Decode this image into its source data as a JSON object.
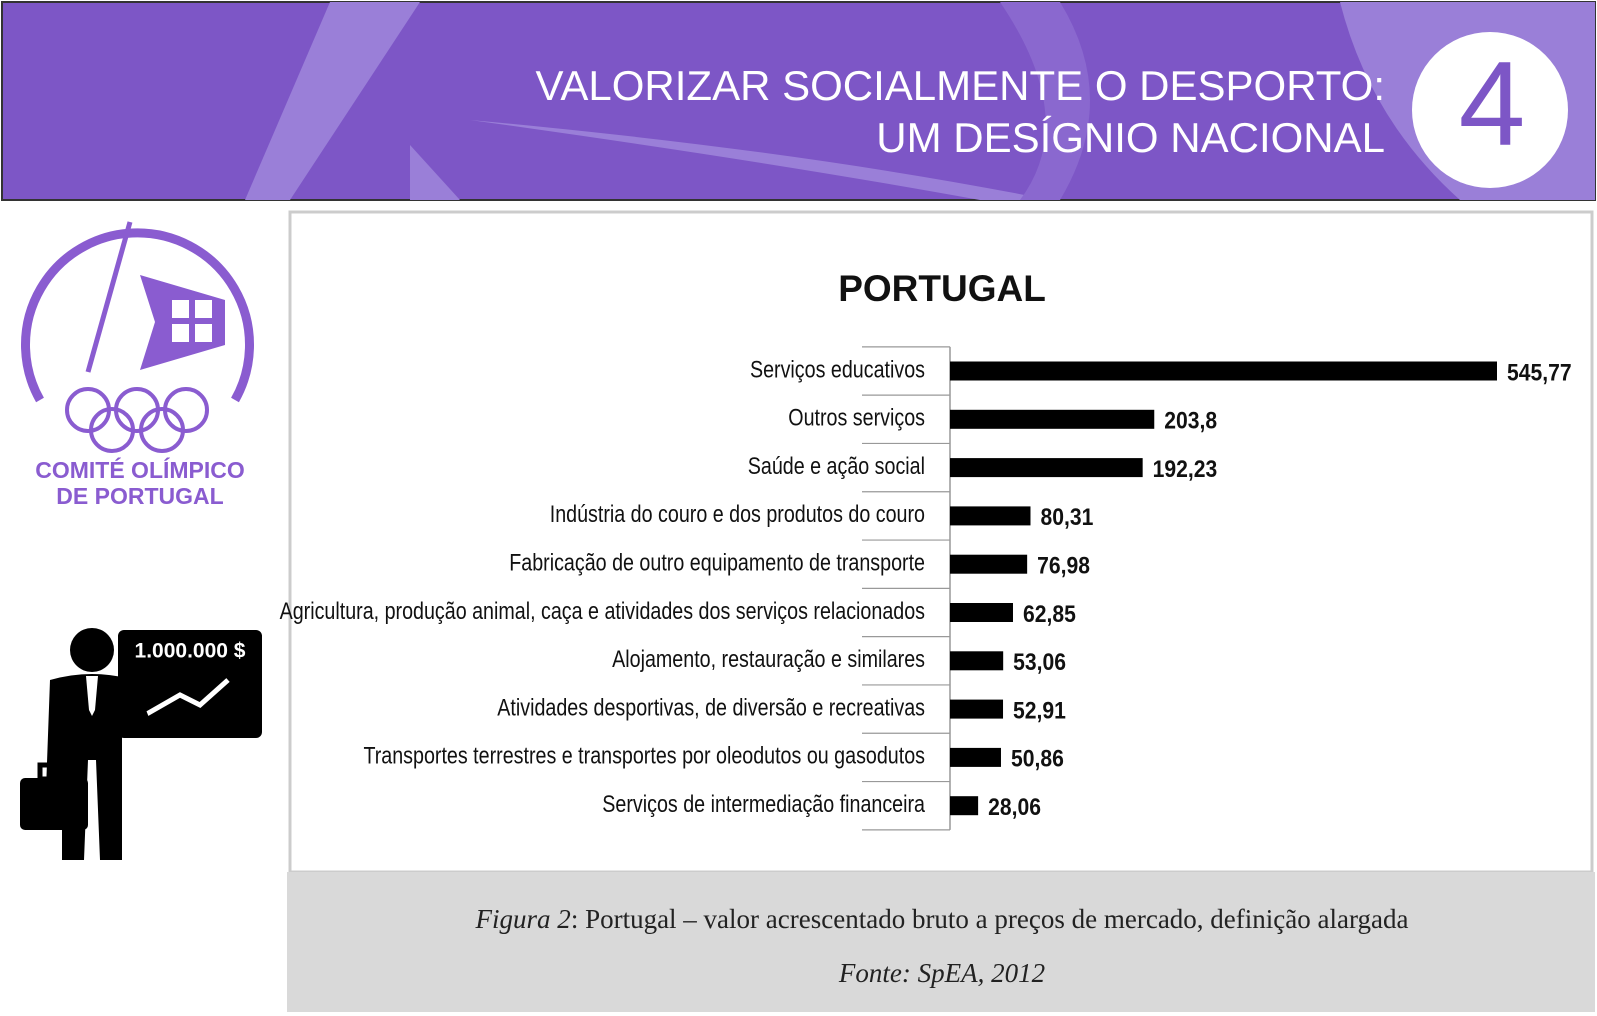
{
  "header": {
    "title_lines": [
      "VALORIZAR SOCIALMENTE O DESPORTO:",
      "UM DESÍGNIO NACIONAL"
    ],
    "number": "4"
  },
  "logo": {
    "lines": [
      "COMITÉ OLÍMPICO",
      "DE PORTUGAL"
    ]
  },
  "icon": {
    "board_text": "1.000.000 $"
  },
  "chart_data": {
    "type": "bar",
    "orientation": "horizontal",
    "title": "PORTUGAL",
    "color": "#000000",
    "categories": [
      "Serviços educativos",
      "Outros serviços",
      "Saúde e ação social",
      "Indústria do couro e dos produtos do couro",
      "Fabricação de outro equipamento de transporte",
      "Agricultura, produção animal, caça e atividades dos serviços relacionados",
      "Alojamento, restauração e similares",
      "Atividades desportivas, de diversão e recreativas",
      "Transportes terrestres e transportes por oleodutos ou gasodutos",
      "Serviços de intermediação financeira"
    ],
    "values": [
      545.77,
      203.8,
      192.23,
      80.31,
      76.98,
      62.85,
      53.06,
      52.91,
      50.86,
      28.06
    ],
    "value_labels": [
      "545,77",
      "203,8",
      "192,23",
      "80,31",
      "76,98",
      "62,85",
      "53,06",
      "52,91",
      "50,86",
      "28,06"
    ]
  },
  "caption": {
    "figure_label": "Figura 2",
    "text": ": Portugal – valor acrescentado bruto a preços de mercado, definição alargada",
    "source": "Fonte: SpEA, 2012"
  }
}
